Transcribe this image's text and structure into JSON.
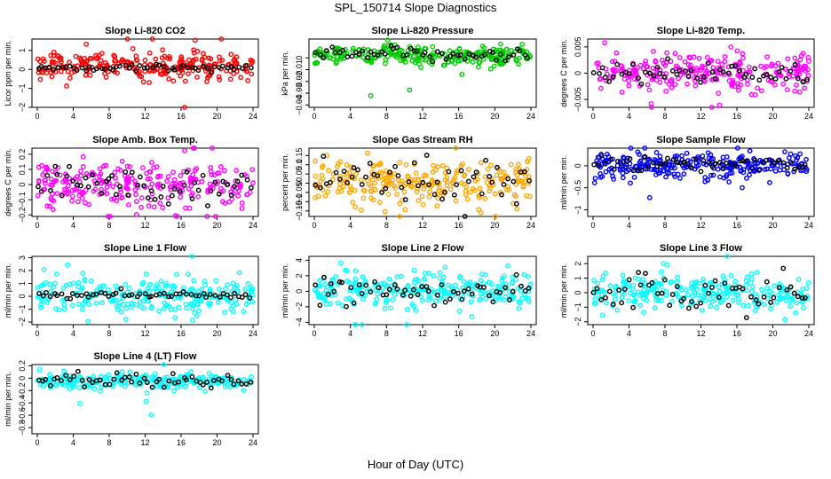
{
  "figure": {
    "title": "SPL_150714  Slope Diagnostics",
    "xlabel": "Hour of Day (UTC)"
  },
  "chart_data": [
    {
      "type": "scatter",
      "title": "Slope Li-820 CO2",
      "ylabel": "Licor ppm per min.",
      "xlim": [
        0,
        24
      ],
      "ylim": [
        -2,
        1.6
      ],
      "yticks": [
        -2,
        -1,
        0,
        1
      ],
      "color": "#ff0000",
      "center": 0.2,
      "spread": 0.35,
      "black_center": 0.1,
      "black_spread": 0.08
    },
    {
      "type": "scatter",
      "title": "Slope Li-820 Pressure",
      "ylabel": "kPa per min.",
      "xlim": [
        0,
        24
      ],
      "ylim": [
        -0.042,
        0.016
      ],
      "yticks": [
        -0.04,
        -0.03,
        -0.02,
        -0.01,
        0
      ],
      "color": "#00cc00",
      "center": 0.002,
      "spread": 0.004,
      "black_center": 0.003,
      "black_spread": 0.003
    },
    {
      "type": "scatter",
      "title": "Slope Li-820 Temp.",
      "ylabel": "degrees C per min.",
      "xlim": [
        0,
        24
      ],
      "ylim": [
        -0.0065,
        0.0065
      ],
      "yticks": [
        -0.005,
        0,
        0.005
      ],
      "color": "#ff00ff",
      "center": 0.0,
      "spread": 0.0018,
      "black_center": 0.0,
      "black_spread": 0.0012
    },
    {
      "type": "scatter",
      "title": "Slope Amb. Box Temp.",
      "ylabel": "degrees C per min.",
      "xlim": [
        0,
        24
      ],
      "ylim": [
        -0.21,
        0.24
      ],
      "yticks": [
        -0.2,
        -0.1,
        0,
        0.1,
        0.2
      ],
      "color": "#ff00ff",
      "center": 0.0,
      "spread": 0.07,
      "black_center": 0.0,
      "black_spread": 0.06
    },
    {
      "type": "scatter",
      "title": "Slope Gas Stream RH",
      "ylabel": "percent per min.",
      "xlim": [
        0,
        24
      ],
      "ylim": [
        -0.18,
        0.19
      ],
      "yticks": [
        -0.15,
        -0.1,
        -0.05,
        0,
        0.05,
        0.1,
        0.15
      ],
      "color": "#ffa500",
      "center": 0.0,
      "spread": 0.06,
      "black_center": 0.0,
      "black_spread": 0.06
    },
    {
      "type": "scatter",
      "title": "Slope Sample Flow",
      "ylabel": "ml/min per min.",
      "xlim": [
        0,
        24
      ],
      "ylim": [
        -1.15,
        0.4
      ],
      "yticks": [
        -1,
        -0.5,
        0
      ],
      "color": "#0000ff",
      "center": 0.0,
      "spread": 0.15,
      "black_center": 0.05,
      "black_spread": 0.1
    },
    {
      "type": "scatter",
      "title": "Slope Line 1 Flow",
      "ylabel": "ml/min per min.",
      "xlim": [
        0,
        24
      ],
      "ylim": [
        -2.2,
        3.1
      ],
      "yticks": [
        -2,
        -1,
        0,
        1,
        2,
        3
      ],
      "color": "#00ffff",
      "center": 0.0,
      "spread": 0.7,
      "black_center": 0.05,
      "black_spread": 0.15
    },
    {
      "type": "scatter",
      "title": "Slope Line 2 Flow",
      "ylabel": "ml/min per min.",
      "xlim": [
        0,
        24
      ],
      "ylim": [
        -4.3,
        4.5
      ],
      "yticks": [
        -4,
        -2,
        0,
        2,
        4
      ],
      "color": "#00ffff",
      "center": 0.0,
      "spread": 1.1,
      "black_center": 0.0,
      "black_spread": 0.9
    },
    {
      "type": "scatter",
      "title": "Slope Line 3 Flow",
      "ylabel": "ml/min per min.",
      "xlim": [
        0,
        24
      ],
      "ylim": [
        -2.2,
        2.5
      ],
      "yticks": [
        -2,
        -1,
        0,
        1,
        2
      ],
      "color": "#00ffff",
      "center": 0.0,
      "spread": 0.6,
      "black_center": 0.0,
      "black_spread": 0.6
    },
    {
      "type": "scatter",
      "title": "Slope Line 4 (LT) Flow",
      "ylabel": "ml/min per min.",
      "xlim": [
        0,
        24
      ],
      "ylim": [
        -0.9,
        0.22
      ],
      "yticks": [
        -0.8,
        -0.6,
        -0.4,
        -0.2,
        0,
        0.2
      ],
      "color": "#00ffff",
      "center": -0.05,
      "spread": 0.06,
      "black_center": -0.04,
      "black_spread": 0.05
    }
  ],
  "x_axis": {
    "ticks": [
      0,
      4,
      8,
      12,
      16,
      20,
      24
    ]
  }
}
